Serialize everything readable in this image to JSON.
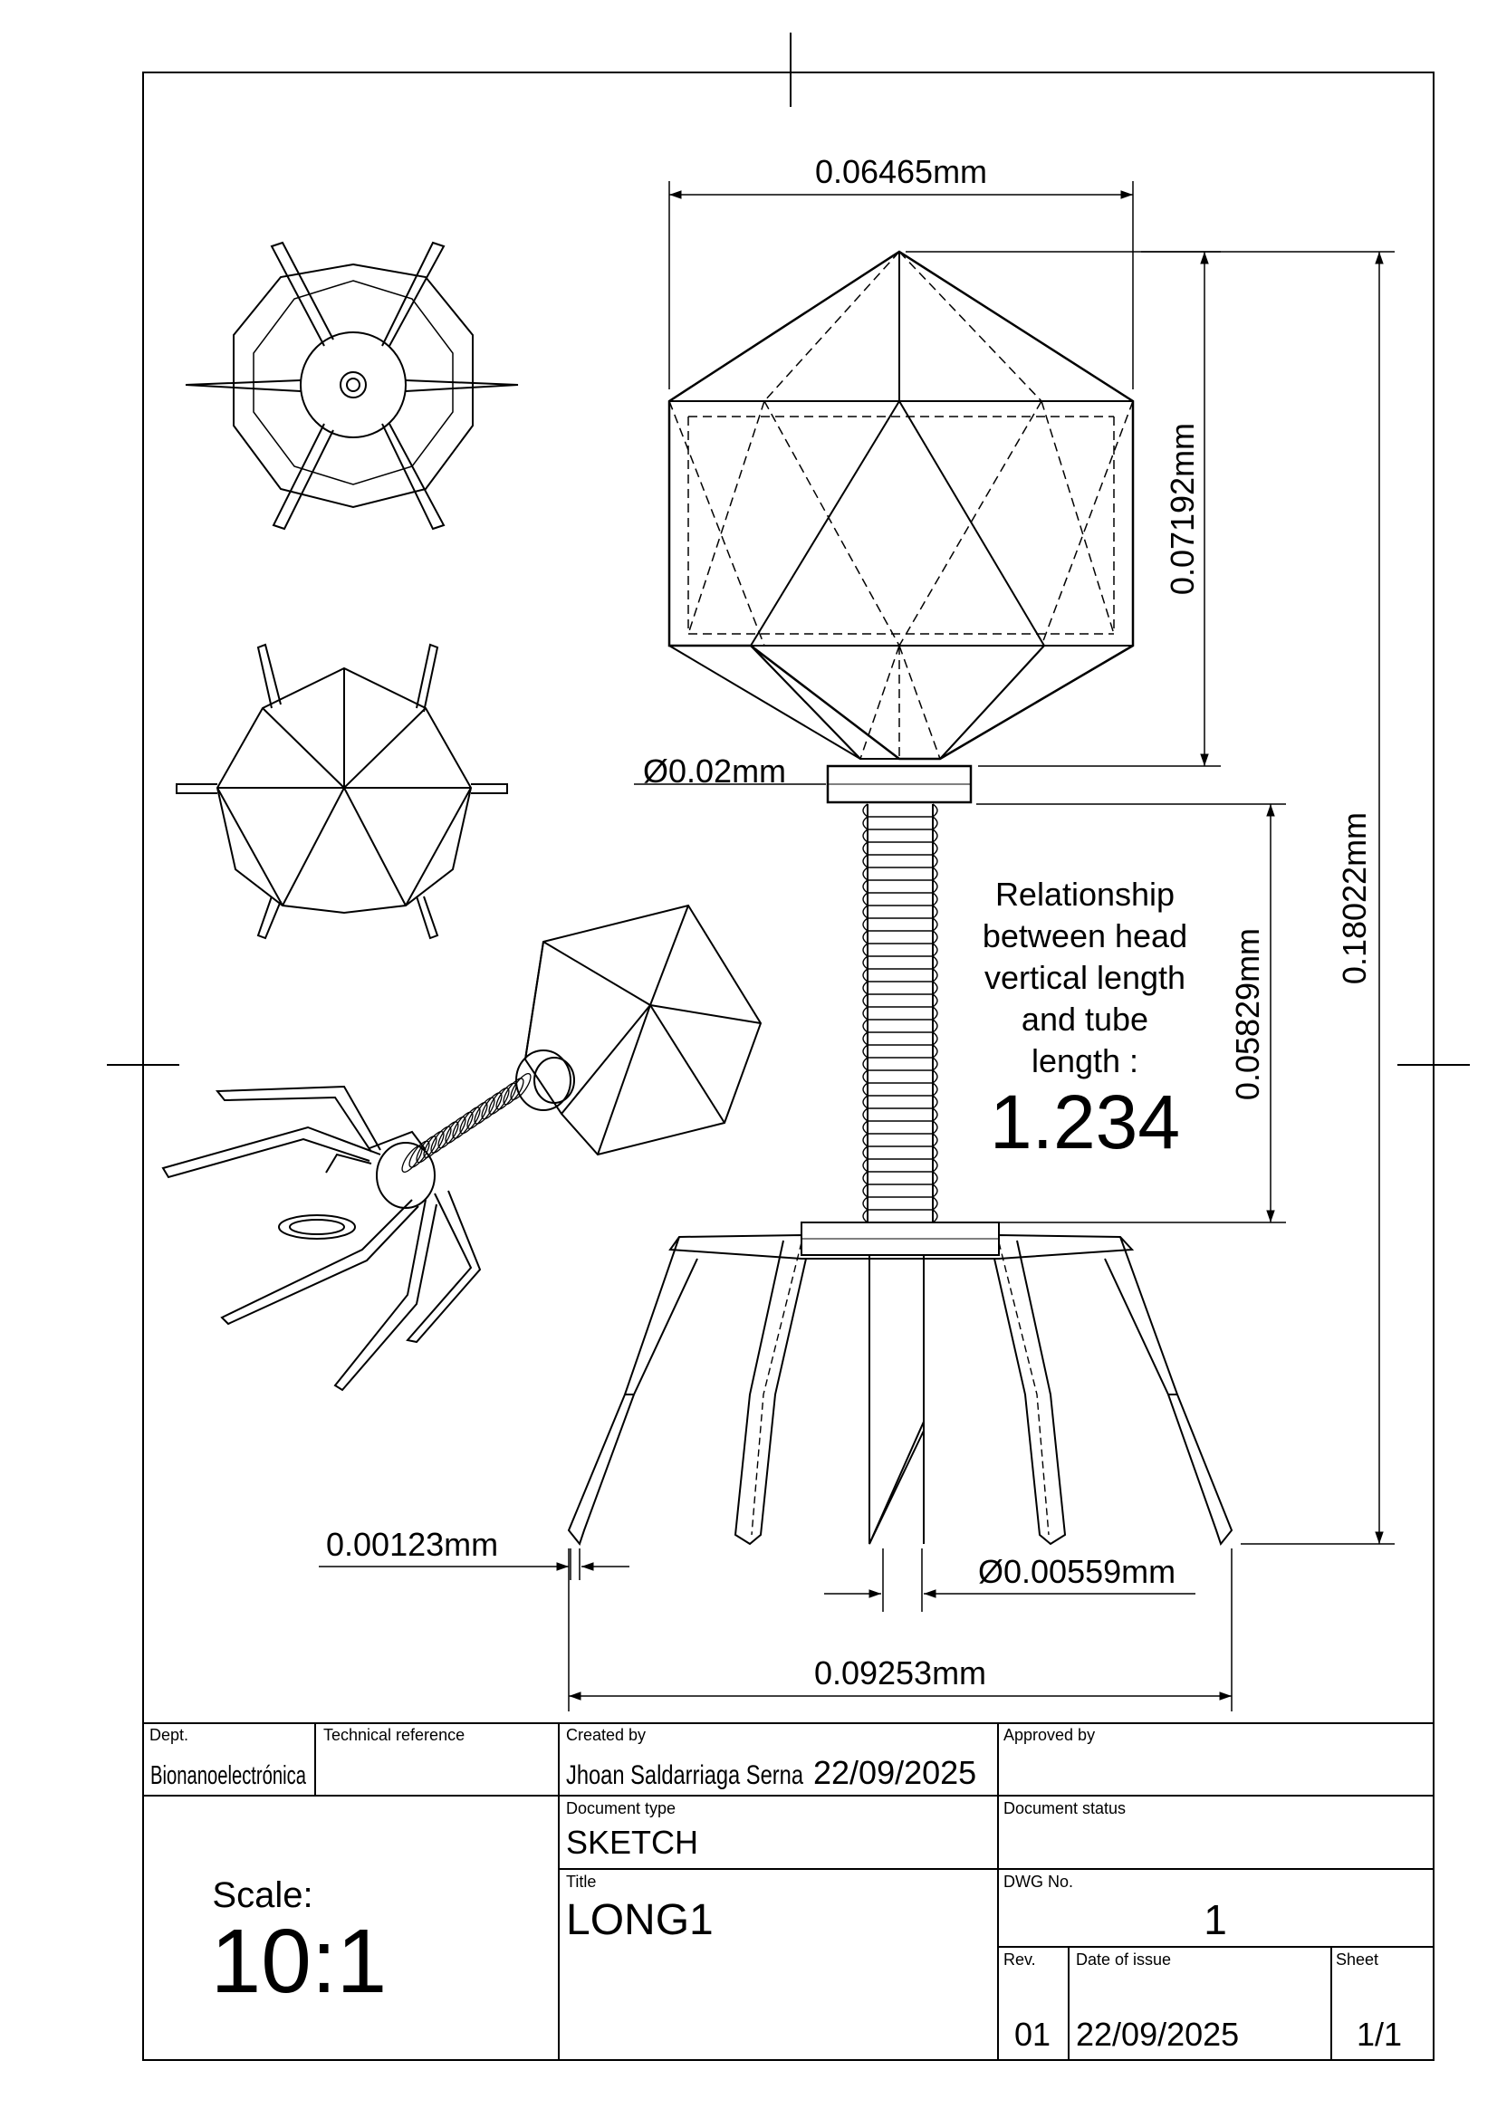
{
  "dimensions": {
    "head_width": "0.06465mm",
    "head_height": "0.07192mm",
    "overall_height": "0.18022mm",
    "collar_diameter": "Ø0.02mm",
    "tube_length": "0.05829mm",
    "fiber_width": "0.00123mm",
    "tube_diameter": "Ø0.00559mm",
    "leg_span": "0.09253mm"
  },
  "note": {
    "lines": [
      "Relationship",
      "between head",
      "vertical length",
      "and tube",
      "length :"
    ],
    "ratio": "1.234"
  },
  "title_block": {
    "dept_label": "Dept.",
    "dept_value": "Bionanoelectrónica",
    "tech_ref_label": "Technical reference",
    "created_label": "Created by",
    "created_value": "Jhoan Saldarriaga Serna",
    "created_date": "22/09/2025",
    "approved_label": "Approved by",
    "doc_type_label": "Document type",
    "doc_type_value": "SKETCH",
    "doc_status_label": "Document status",
    "scale_label": "Scale:",
    "scale_value": "10:1",
    "title_label": "Title",
    "title_value": "LONG1",
    "dwg_label": "DWG No.",
    "dwg_value": "1",
    "rev_label": "Rev.",
    "rev_value": "01",
    "issue_label": "Date of issue",
    "issue_value": "22/09/2025",
    "sheet_label": "Sheet",
    "sheet_value": "1/1"
  }
}
